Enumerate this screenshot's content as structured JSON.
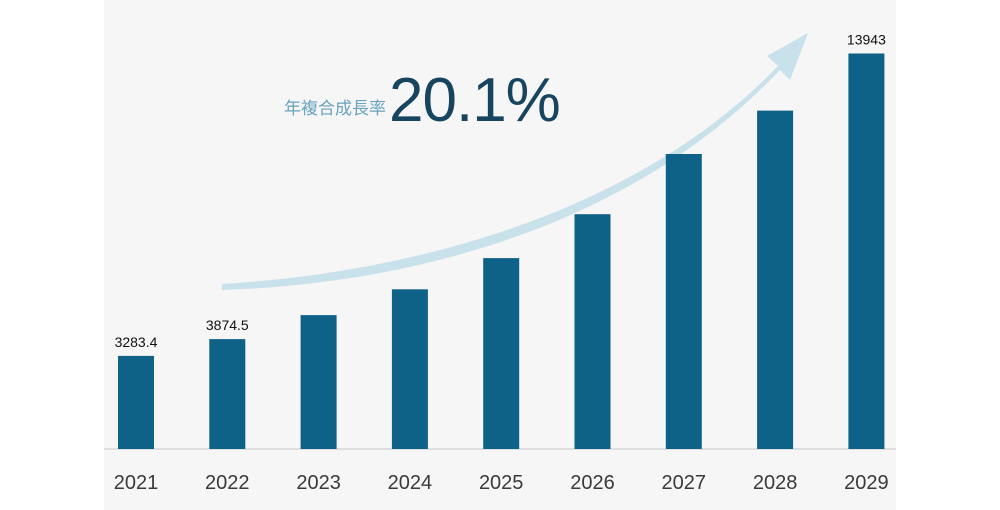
{
  "cagr": {
    "label": "年複合成長率",
    "value": "20.1%"
  },
  "chart_data": {
    "type": "bar",
    "categories": [
      "2021",
      "2022",
      "2023",
      "2024",
      "2025",
      "2026",
      "2027",
      "2028",
      "2029"
    ],
    "values": [
      3283.4,
      3874.5,
      4720,
      5630,
      6730,
      8280,
      10400,
      11930,
      13943
    ],
    "data_labels": [
      "3283.4",
      "3874.5",
      "",
      "",
      "",
      "",
      "",
      "",
      "13943"
    ],
    "ylim": [
      0,
      14350
    ],
    "xlabel": "",
    "ylabel": "",
    "grid": false,
    "colors": {
      "bar": "#0f6287",
      "arrow": "#c8e1ea",
      "baseline": "#d6d6d6",
      "tick_label": "#3a3a3a",
      "data_label": "#111111"
    }
  }
}
